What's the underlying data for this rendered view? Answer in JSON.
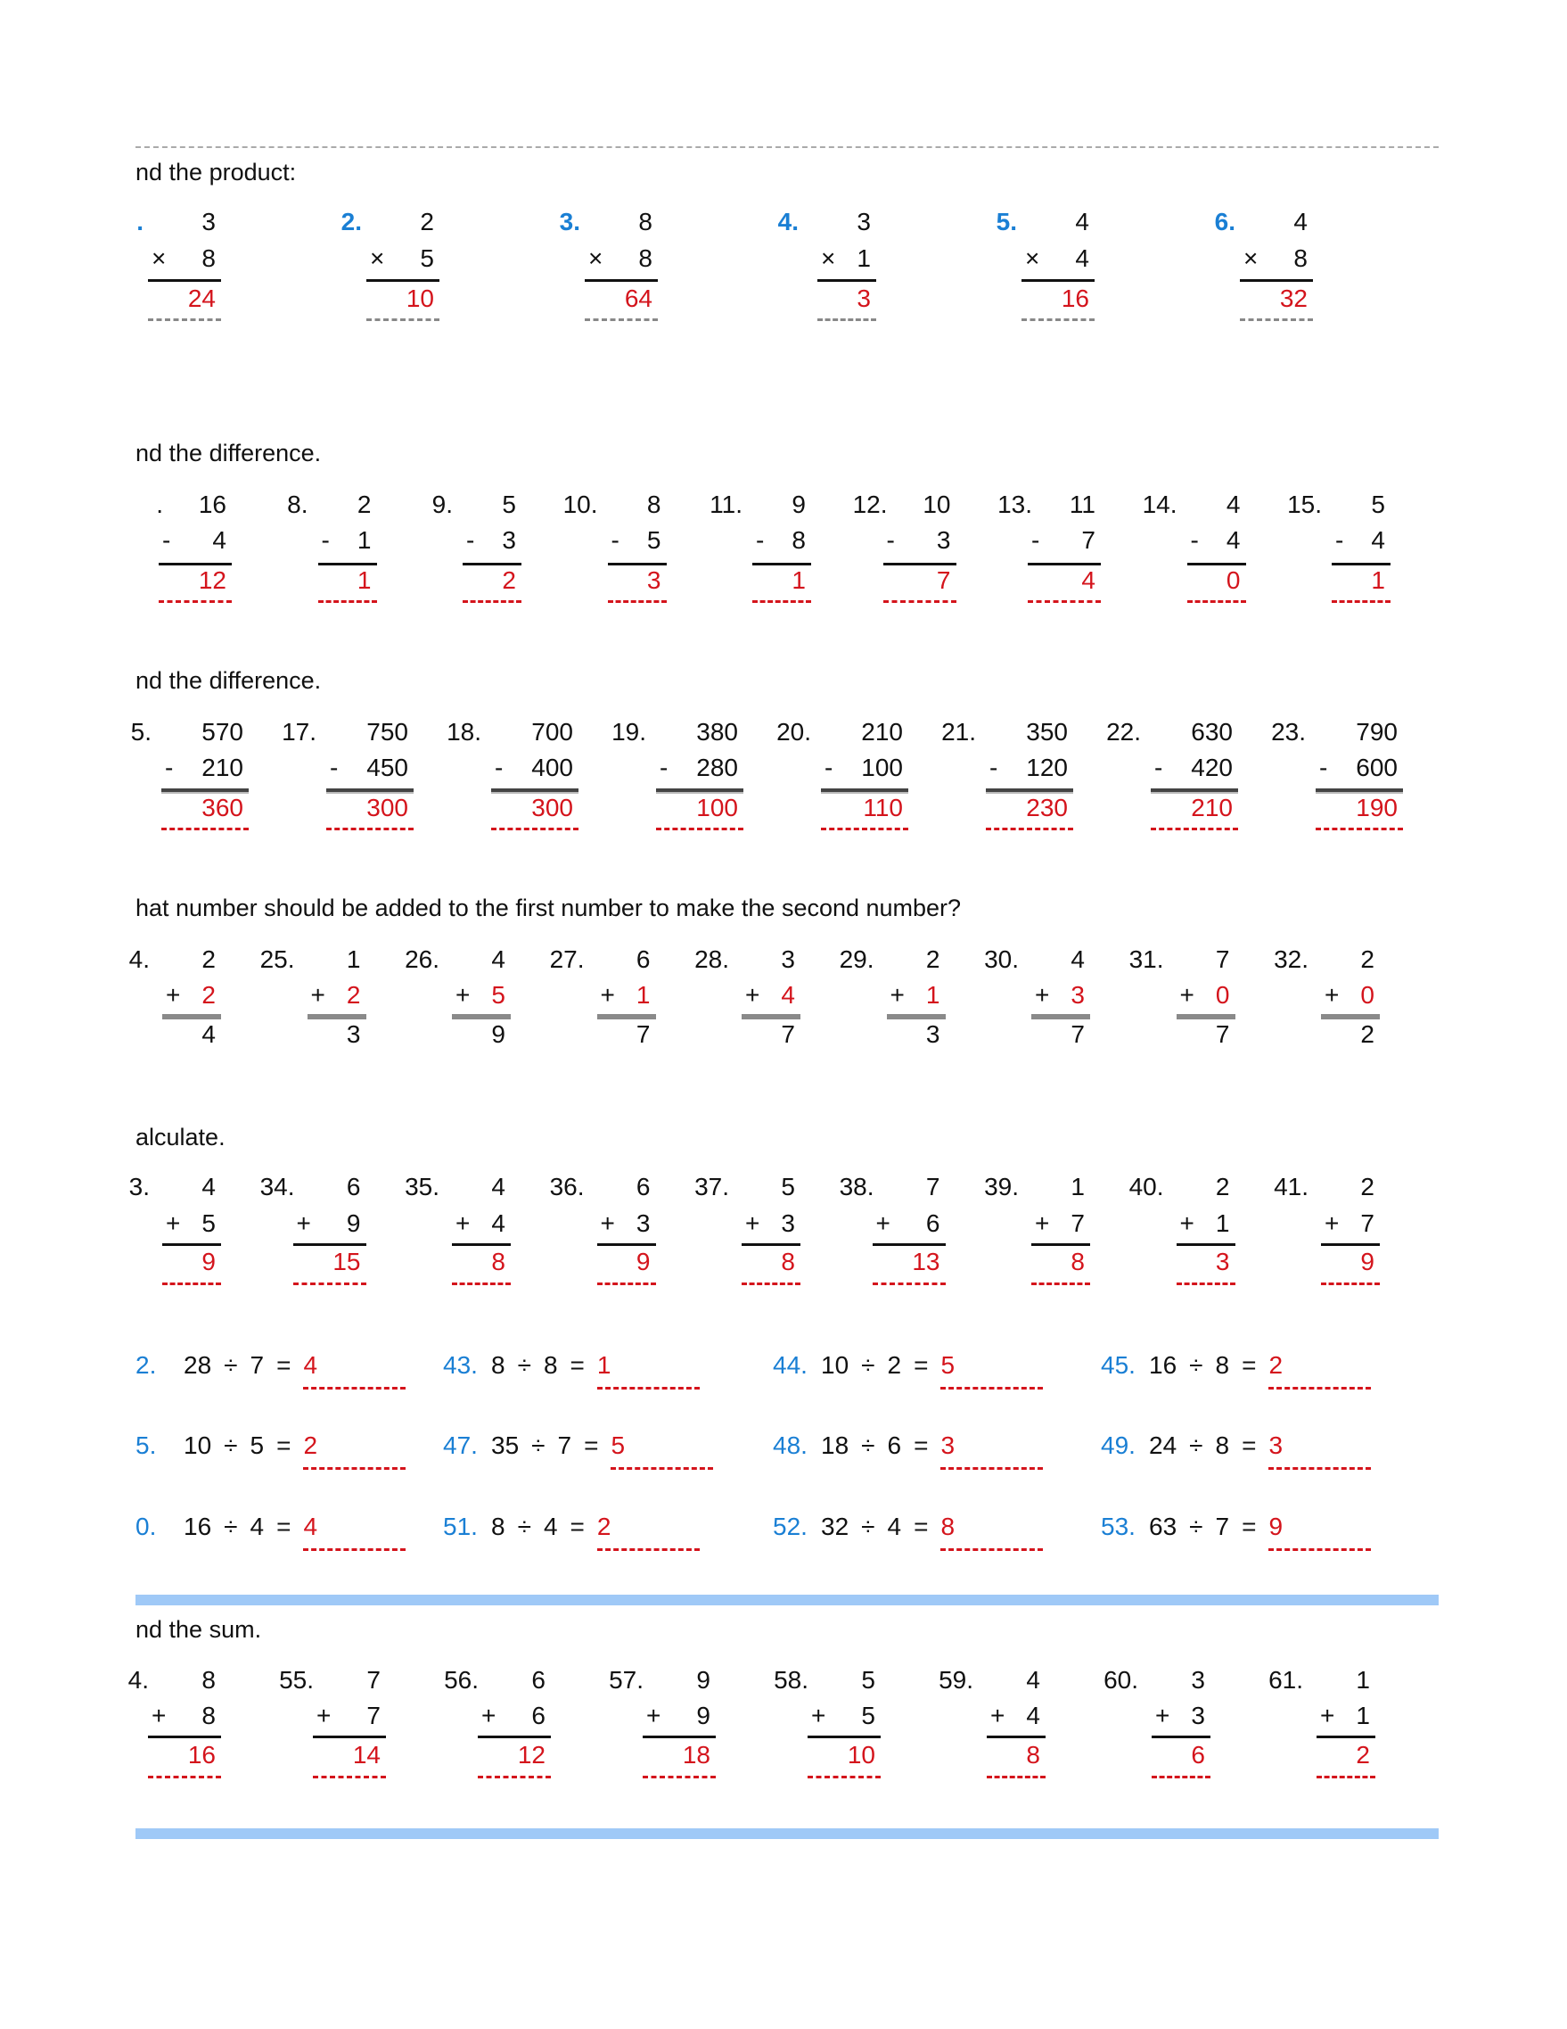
{
  "colors": {
    "label_blue": "#1a7fd4",
    "answer_red": "#d4141c",
    "section_bar": "#9fc9f7"
  },
  "sections": [
    {
      "id": "product",
      "heading": "nd the product:",
      "operator": "×",
      "answer_in": "result",
      "problems": [
        {
          "label": ".",
          "a": "3",
          "b": "8",
          "result": "24"
        },
        {
          "label": "2.",
          "a": "2",
          "b": "5",
          "result": "10"
        },
        {
          "label": "3.",
          "a": "8",
          "b": "8",
          "result": "64"
        },
        {
          "label": "4.",
          "a": "3",
          "b": "1",
          "result": "3"
        },
        {
          "label": "5.",
          "a": "4",
          "b": "4",
          "result": "16"
        },
        {
          "label": "6.",
          "a": "4",
          "b": "8",
          "result": "32"
        }
      ]
    },
    {
      "id": "difference-1",
      "heading": "nd the difference.",
      "operator": "-",
      "answer_in": "result",
      "problems": [
        {
          "label": ".",
          "a": "16",
          "b": "4",
          "result": "12"
        },
        {
          "label": "8.",
          "a": "2",
          "b": "1",
          "result": "1"
        },
        {
          "label": "9.",
          "a": "5",
          "b": "3",
          "result": "2"
        },
        {
          "label": "10.",
          "a": "8",
          "b": "5",
          "result": "3"
        },
        {
          "label": "11.",
          "a": "9",
          "b": "8",
          "result": "1"
        },
        {
          "label": "12.",
          "a": "10",
          "b": "3",
          "result": "7"
        },
        {
          "label": "13.",
          "a": "11",
          "b": "7",
          "result": "4"
        },
        {
          "label": "14.",
          "a": "4",
          "b": "4",
          "result": "0"
        },
        {
          "label": "15.",
          "a": "5",
          "b": "4",
          "result": "1"
        }
      ]
    },
    {
      "id": "difference-2",
      "heading": "nd the difference.",
      "operator": "-",
      "answer_in": "result",
      "problems": [
        {
          "label": "5.",
          "a": "570",
          "b": "210",
          "result": "360"
        },
        {
          "label": "17.",
          "a": "750",
          "b": "450",
          "result": "300"
        },
        {
          "label": "18.",
          "a": "700",
          "b": "400",
          "result": "300"
        },
        {
          "label": "19.",
          "a": "380",
          "b": "280",
          "result": "100"
        },
        {
          "label": "20.",
          "a": "210",
          "b": "100",
          "result": "110"
        },
        {
          "label": "21.",
          "a": "350",
          "b": "120",
          "result": "230"
        },
        {
          "label": "22.",
          "a": "630",
          "b": "420",
          "result": "210"
        },
        {
          "label": "23.",
          "a": "790",
          "b": "600",
          "result": "190"
        }
      ]
    },
    {
      "id": "missing-addend",
      "heading": "hat number should be added to the first number to make the second number?",
      "operator": "+",
      "answer_in": "b",
      "problems": [
        {
          "label": "4.",
          "a": "2",
          "b": "2",
          "result": "4"
        },
        {
          "label": "25.",
          "a": "1",
          "b": "2",
          "result": "3"
        },
        {
          "label": "26.",
          "a": "4",
          "b": "5",
          "result": "9"
        },
        {
          "label": "27.",
          "a": "6",
          "b": "1",
          "result": "7"
        },
        {
          "label": "28.",
          "a": "3",
          "b": "4",
          "result": "7"
        },
        {
          "label": "29.",
          "a": "2",
          "b": "1",
          "result": "3"
        },
        {
          "label": "30.",
          "a": "4",
          "b": "3",
          "result": "7"
        },
        {
          "label": "31.",
          "a": "7",
          "b": "0",
          "result": "7"
        },
        {
          "label": "32.",
          "a": "2",
          "b": "0",
          "result": "2"
        }
      ]
    },
    {
      "id": "calculate",
      "heading": "alculate.",
      "operator": "+",
      "answer_in": "result",
      "problems": [
        {
          "label": "3.",
          "a": "4",
          "b": "5",
          "result": "9"
        },
        {
          "label": "34.",
          "a": "6",
          "b": "9",
          "result": "15"
        },
        {
          "label": "35.",
          "a": "4",
          "b": "4",
          "result": "8"
        },
        {
          "label": "36.",
          "a": "6",
          "b": "3",
          "result": "9"
        },
        {
          "label": "37.",
          "a": "5",
          "b": "3",
          "result": "8"
        },
        {
          "label": "38.",
          "a": "7",
          "b": "6",
          "result": "13"
        },
        {
          "label": "39.",
          "a": "1",
          "b": "7",
          "result": "8"
        },
        {
          "label": "40.",
          "a": "2",
          "b": "1",
          "result": "3"
        },
        {
          "label": "41.",
          "a": "2",
          "b": "7",
          "result": "9"
        }
      ]
    },
    {
      "id": "sum",
      "heading": "nd the sum.",
      "operator": "+",
      "answer_in": "result",
      "problems": [
        {
          "label": "4.",
          "a": "8",
          "b": "8",
          "result": "16"
        },
        {
          "label": "55.",
          "a": "7",
          "b": "7",
          "result": "14"
        },
        {
          "label": "56.",
          "a": "6",
          "b": "6",
          "result": "12"
        },
        {
          "label": "57.",
          "a": "9",
          "b": "9",
          "result": "18"
        },
        {
          "label": "58.",
          "a": "5",
          "b": "5",
          "result": "10"
        },
        {
          "label": "59.",
          "a": "4",
          "b": "4",
          "result": "8"
        },
        {
          "label": "60.",
          "a": "3",
          "b": "3",
          "result": "6"
        },
        {
          "label": "61.",
          "a": "1",
          "b": "1",
          "result": "2"
        }
      ]
    }
  ],
  "division": {
    "operator": "÷",
    "equals": "=",
    "rows": [
      [
        {
          "label": "2.",
          "dividend": "28",
          "divisor": "7",
          "answer": "4"
        },
        {
          "label": "43.",
          "dividend": "8",
          "divisor": "8",
          "answer": "1"
        },
        {
          "label": "44.",
          "dividend": "10",
          "divisor": "2",
          "answer": "5"
        },
        {
          "label": "45.",
          "dividend": "16",
          "divisor": "8",
          "answer": "2"
        }
      ],
      [
        {
          "label": "5.",
          "dividend": "10",
          "divisor": "5",
          "answer": "2"
        },
        {
          "label": "47.",
          "dividend": "35",
          "divisor": "7",
          "answer": "5"
        },
        {
          "label": "48.",
          "dividend": "18",
          "divisor": "6",
          "answer": "3"
        },
        {
          "label": "49.",
          "dividend": "24",
          "divisor": "8",
          "answer": "3"
        }
      ],
      [
        {
          "label": "0.",
          "dividend": "16",
          "divisor": "4",
          "answer": "4"
        },
        {
          "label": "51.",
          "dividend": "8",
          "divisor": "4",
          "answer": "2"
        },
        {
          "label": "52.",
          "dividend": "32",
          "divisor": "4",
          "answer": "8"
        },
        {
          "label": "53.",
          "dividend": "63",
          "divisor": "7",
          "answer": "9"
        }
      ]
    ]
  }
}
